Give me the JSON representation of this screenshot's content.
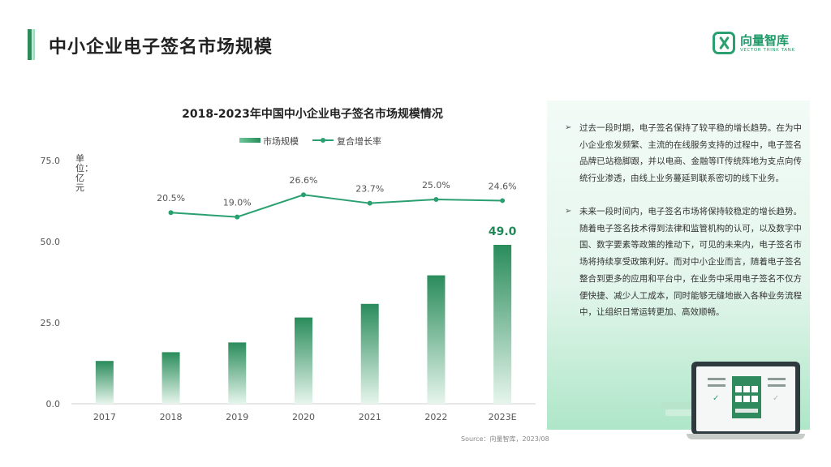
{
  "page": {
    "title": "中小企业电子签名市场规模"
  },
  "logo": {
    "name": "向量智库",
    "sub": "VECTOR THINK TANK"
  },
  "colors": {
    "accent": "#2aa070",
    "bar_top": "#2a8c5b",
    "bar_bottom": "#e6f5ec",
    "line": "#2aa070"
  },
  "chart_data": {
    "type": "bar",
    "title": "2018-2023年中国中小企业电子签名市场规模情况",
    "categories": [
      "2017",
      "2018",
      "2019",
      "2020",
      "2021",
      "2022",
      "2023E"
    ],
    "series": [
      {
        "name": "市场规模",
        "type": "bar",
        "values": [
          13.2,
          15.9,
          18.9,
          26.6,
          30.8,
          39.6,
          49.0
        ]
      },
      {
        "name": "复合增长率",
        "type": "line",
        "values": [
          null,
          20.5,
          19.0,
          26.6,
          23.7,
          25.0,
          24.6
        ],
        "labels": [
          "",
          "20.5%",
          "19.0%",
          "26.6%",
          "23.7%",
          "25.0%",
          "24.6%"
        ]
      }
    ],
    "highlight_label": "49.0",
    "ylabel": "单位：亿元",
    "ylim": [
      0,
      75
    ],
    "yticks": [
      "0.0",
      "25.0",
      "50.0",
      "75.0"
    ],
    "legend_position": "top"
  },
  "panel": {
    "items": [
      {
        "bullet": "➢",
        "text": "过去一段时期，电子签名保持了较平稳的增长趋势。在为中小企业愈发频繁、主流的在线服务支持的过程中，电子签名品牌已站稳脚跟，并以电商、金融等IT传统阵地为支点向传统行业渗透，由线上业务蔓延到联系密切的线下业务。"
      },
      {
        "bullet": "➢",
        "text": "未来一段时间内，电子签名市场将保持较稳定的增长趋势。随着电子签名技术得到法律和监管机构的认可，以及数字中国、数字要素等政策的推动下，可见的未来内，电子签名市场将持续享受政策利好。而对中小企业而言，随着电子签名整合到更多的应用和平台中，在业务中采用电子签名不仅方便快捷、减少人工成本，同时能够无缝地嵌入各种业务流程中，让组织日常运转更加、高效顺畅。"
      }
    ]
  },
  "source": "Source：向量智库，2023/08"
}
